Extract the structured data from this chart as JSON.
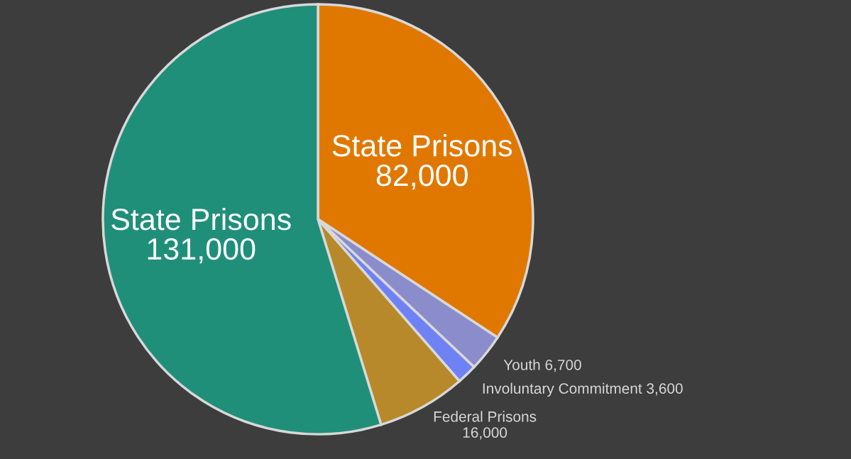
{
  "chart_data": {
    "type": "pie",
    "categories": [
      "State Prisons",
      "Youth",
      "Involuntary Commitment",
      "Federal Prisons",
      "State Prisons"
    ],
    "values": [
      82000,
      6700,
      3600,
      16000,
      131000
    ],
    "value_labels": [
      "82,000",
      "6,700",
      "3,600",
      "16,000",
      "131,000"
    ],
    "colors": [
      "#e07800",
      "#8a8ccc",
      "#6f82f5",
      "#b8892a",
      "#1f8f7a"
    ]
  }
}
